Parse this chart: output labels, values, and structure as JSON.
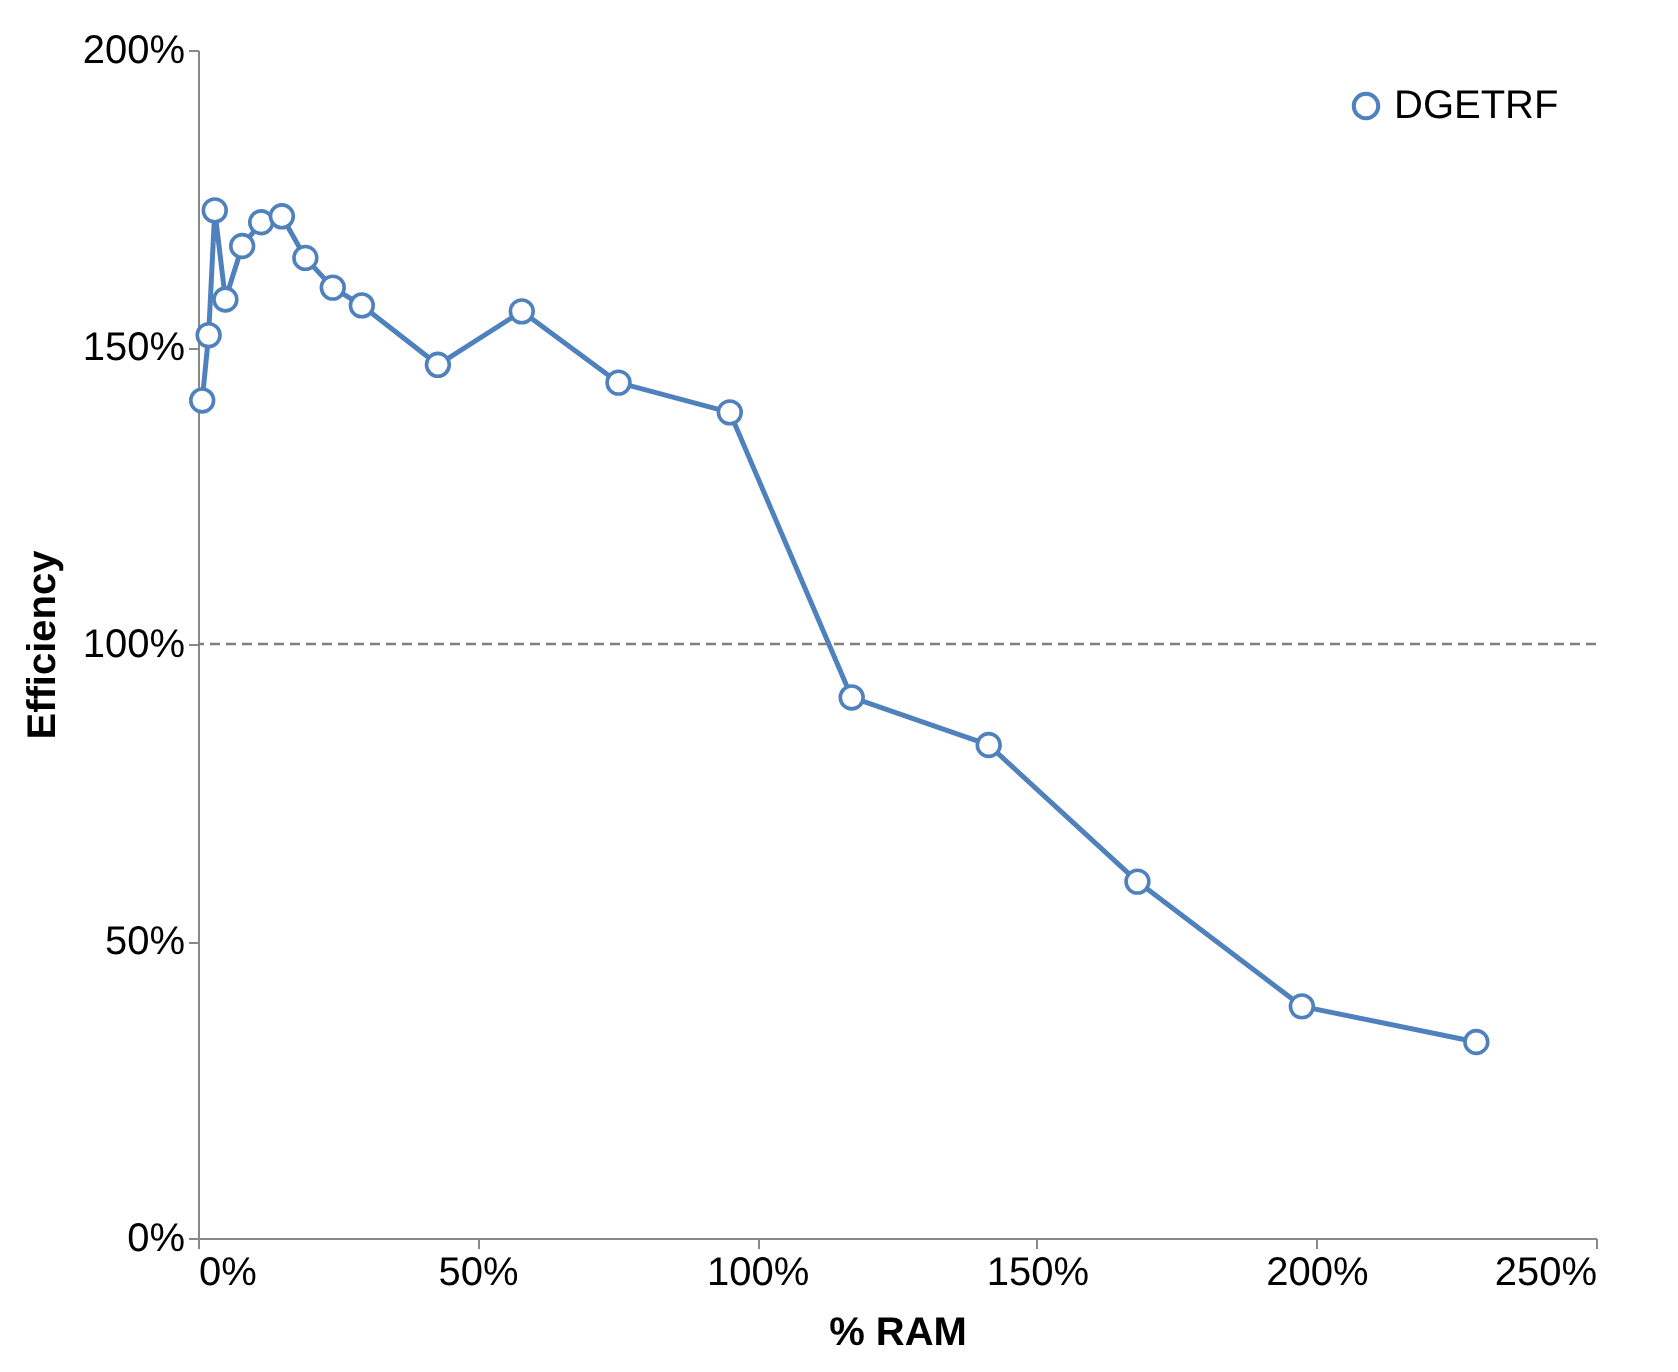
{
  "chart_data": {
    "type": "line",
    "xlabel": "% RAM",
    "ylabel": "Efficiency",
    "series": [
      {
        "name": "DGETRF",
        "color": "#4f81bd",
        "marker": "circle",
        "line_style": "solid",
        "x": [
          0.75,
          1.9,
          3.0,
          4.9,
          7.9,
          11.3,
          15.0,
          19.2,
          24.1,
          29.3,
          42.9,
          57.9,
          75.2,
          95.1,
          116.9,
          141.4,
          168.0,
          197.4,
          228.6
        ],
        "values": [
          141,
          152,
          173,
          158,
          167,
          171,
          172,
          165,
          160,
          157,
          147,
          156,
          144,
          139,
          91,
          83,
          60,
          39,
          33
        ]
      }
    ],
    "xlim": [
      0,
      250
    ],
    "ylim": [
      0,
      200
    ],
    "xticks": [
      {
        "value": 0,
        "label": "0%"
      },
      {
        "value": 50,
        "label": "50%"
      },
      {
        "value": 100,
        "label": "100%"
      },
      {
        "value": 150,
        "label": "150%"
      },
      {
        "value": 200,
        "label": "200%"
      },
      {
        "value": 250,
        "label": "250%"
      }
    ],
    "yticks": [
      {
        "value": 0,
        "label": "0%"
      },
      {
        "value": 50,
        "label": "50%"
      },
      {
        "value": 100,
        "label": "100%"
      },
      {
        "value": 150,
        "label": "150%"
      },
      {
        "value": 200,
        "label": "200%"
      }
    ],
    "ref_lines": [
      {
        "axis": "y",
        "value": 100,
        "color": "#7f7f7f",
        "line_style": "dashed"
      }
    ],
    "grid": false,
    "legend": "top right"
  }
}
